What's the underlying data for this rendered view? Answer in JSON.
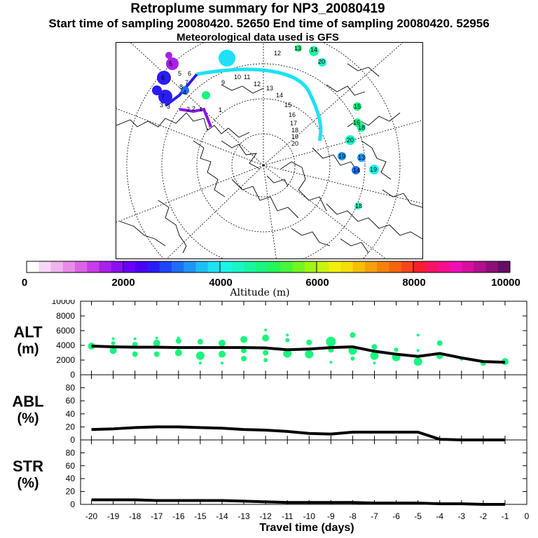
{
  "header": {
    "title": "Retroplume summary for NP3_20080419",
    "line2": "Start time of sampling 20080420. 52650     End time of sampling 20080420. 52956",
    "line3": "Meteorological data used is GFS"
  },
  "colorbar": {
    "label": "Altitude (m)",
    "ticks": [
      "0",
      "2000",
      "4000",
      "6000",
      "8000",
      "10000"
    ],
    "colors": [
      "#ffffff",
      "#f7d7f7",
      "#f0b4f0",
      "#e78de8",
      "#dc64e4",
      "#c83ce6",
      "#a920ea",
      "#8c0ff0",
      "#6a00f5",
      "#4a00f5",
      "#2a1cf5",
      "#1e46f5",
      "#1e6ef5",
      "#1e96f5",
      "#1ebef5",
      "#1ee1f5",
      "#19f5e6",
      "#19f5c3",
      "#19f5a0",
      "#19f57d",
      "#23f55a",
      "#46f53c",
      "#73f51e",
      "#a0f514",
      "#c8f50f",
      "#f0f00a",
      "#f5dc0a",
      "#f5be0a",
      "#f5a00a",
      "#f5820a",
      "#f5640f",
      "#f54619",
      "#f51e2d",
      "#f51464",
      "#f50f8c",
      "#f00fb4",
      "#d70fa0",
      "#b40f8c",
      "#8c0f78",
      "#640f64"
    ]
  },
  "map_labels": {
    "plume_days": [
      "1",
      "2",
      "3",
      "4",
      "5",
      "6",
      "7",
      "8",
      "9",
      "10",
      "11",
      "12",
      "13",
      "14",
      "15",
      "16",
      "17",
      "18",
      "19",
      "20"
    ],
    "particle_days": [
      "13",
      "14",
      "20",
      "15",
      "16",
      "18",
      "20",
      "19",
      "13",
      "14",
      "19",
      "18",
      "12",
      "6",
      "7",
      "5",
      "3",
      "2",
      "1"
    ]
  },
  "chart_data": [
    {
      "type": "line",
      "id": "ALT",
      "title": "ALT",
      "ylabel": "(m)",
      "x": [
        -20,
        -19,
        -18,
        -17,
        -16,
        -15,
        -14,
        -13,
        -12,
        -11,
        -10,
        -9,
        -8,
        -7,
        -6,
        -5,
        -4,
        -3,
        -2,
        -1
      ],
      "values": [
        3900,
        3800,
        3750,
        3750,
        3700,
        3700,
        3700,
        3700,
        3650,
        3400,
        3500,
        3700,
        3800,
        3200,
        2800,
        2500,
        2900,
        2300,
        1800,
        1700
      ],
      "ylim": [
        0,
        10000
      ],
      "yticks": [
        "0",
        "2000",
        "4000",
        "6000",
        "8000",
        "10000"
      ],
      "scatter_color": "#19f57d",
      "scatter": [
        {
          "x": -20,
          "y": 3900,
          "r": 5
        },
        {
          "x": -19,
          "y": 4300,
          "r": 3
        },
        {
          "x": -19,
          "y": 3300,
          "r": 5
        },
        {
          "x": -19,
          "y": 4900,
          "r": 2
        },
        {
          "x": -18,
          "y": 4100,
          "r": 4
        },
        {
          "x": -18,
          "y": 2800,
          "r": 4
        },
        {
          "x": -18,
          "y": 4900,
          "r": 2
        },
        {
          "x": -17,
          "y": 4300,
          "r": 5
        },
        {
          "x": -17,
          "y": 2800,
          "r": 4
        },
        {
          "x": -17,
          "y": 5000,
          "r": 2
        },
        {
          "x": -16,
          "y": 4600,
          "r": 4
        },
        {
          "x": -16,
          "y": 3000,
          "r": 5
        },
        {
          "x": -16,
          "y": 5000,
          "r": 2
        },
        {
          "x": -15,
          "y": 4500,
          "r": 4
        },
        {
          "x": -15,
          "y": 2600,
          "r": 6
        },
        {
          "x": -15,
          "y": 1600,
          "r": 2
        },
        {
          "x": -14,
          "y": 4300,
          "r": 5
        },
        {
          "x": -14,
          "y": 2800,
          "r": 5
        },
        {
          "x": -14,
          "y": 1600,
          "r": 2
        },
        {
          "x": -13,
          "y": 4800,
          "r": 5
        },
        {
          "x": -13,
          "y": 3300,
          "r": 4
        },
        {
          "x": -13,
          "y": 2200,
          "r": 4
        },
        {
          "x": -12,
          "y": 5000,
          "r": 5
        },
        {
          "x": -12,
          "y": 3000,
          "r": 4
        },
        {
          "x": -12,
          "y": 2000,
          "r": 3
        },
        {
          "x": -12,
          "y": 6100,
          "r": 2
        },
        {
          "x": -11,
          "y": 4700,
          "r": 3
        },
        {
          "x": -11,
          "y": 2900,
          "r": 6
        },
        {
          "x": -11,
          "y": 5400,
          "r": 2
        },
        {
          "x": -10,
          "y": 4400,
          "r": 4
        },
        {
          "x": -10,
          "y": 2800,
          "r": 6
        },
        {
          "x": -9,
          "y": 4500,
          "r": 7
        },
        {
          "x": -9,
          "y": 3400,
          "r": 4
        },
        {
          "x": -9,
          "y": 1700,
          "r": 2
        },
        {
          "x": -8,
          "y": 5400,
          "r": 4
        },
        {
          "x": -8,
          "y": 3300,
          "r": 6
        },
        {
          "x": -8,
          "y": 2200,
          "r": 3
        },
        {
          "x": -7,
          "y": 3800,
          "r": 4
        },
        {
          "x": -7,
          "y": 2600,
          "r": 6
        },
        {
          "x": -7,
          "y": 1600,
          "r": 2
        },
        {
          "x": -6,
          "y": 3400,
          "r": 3
        },
        {
          "x": -6,
          "y": 2400,
          "r": 6
        },
        {
          "x": -5,
          "y": 3300,
          "r": 2
        },
        {
          "x": -5,
          "y": 1800,
          "r": 6
        },
        {
          "x": -5,
          "y": 5400,
          "r": 2
        },
        {
          "x": -4,
          "y": 4300,
          "r": 4
        },
        {
          "x": -4,
          "y": 2600,
          "r": 5
        },
        {
          "x": -3,
          "y": 2200,
          "r": 3
        },
        {
          "x": -2,
          "y": 1600,
          "r": 4
        },
        {
          "x": -1,
          "y": 1800,
          "r": 5
        }
      ]
    },
    {
      "type": "line",
      "id": "ABL",
      "title": "ABL",
      "ylabel": "(%)",
      "x": [
        -20,
        -19,
        -18,
        -17,
        -16,
        -15,
        -14,
        -13,
        -12,
        -11,
        -10,
        -9,
        -8,
        -7,
        -6,
        -5,
        -4,
        -3,
        -2,
        -1
      ],
      "values": [
        16,
        17,
        19,
        20,
        20,
        19,
        18,
        16,
        15,
        13,
        10,
        9,
        12,
        12,
        12,
        12,
        1,
        0,
        0,
        0
      ],
      "ylim": [
        0,
        100
      ],
      "yticks": [
        "0",
        "20",
        "40",
        "60",
        "80"
      ]
    },
    {
      "type": "line",
      "id": "STR",
      "title": "STR",
      "ylabel": "(%)",
      "x": [
        -20,
        -19,
        -18,
        -17,
        -16,
        -15,
        -14,
        -13,
        -12,
        -11,
        -10,
        -9,
        -8,
        -7,
        -6,
        -5,
        -4,
        -3,
        -2,
        -1
      ],
      "values": [
        7,
        7,
        7,
        6,
        6,
        6,
        6,
        5,
        4,
        3,
        3,
        3,
        3,
        2,
        2,
        2,
        1,
        1,
        0,
        0
      ],
      "ylim": [
        0,
        100
      ],
      "yticks": [
        "0",
        "20",
        "40",
        "60",
        "80"
      ],
      "xlabel": "Travel time (days)",
      "xticks": [
        "-20",
        "-19",
        "-18",
        "-17",
        "-16",
        "-15",
        "-14",
        "-13",
        "-12",
        "-11",
        "-10",
        "-9",
        "-8",
        "-7",
        "-6",
        "-5",
        "-4",
        "-3",
        "-2",
        "-1",
        "0"
      ]
    }
  ]
}
